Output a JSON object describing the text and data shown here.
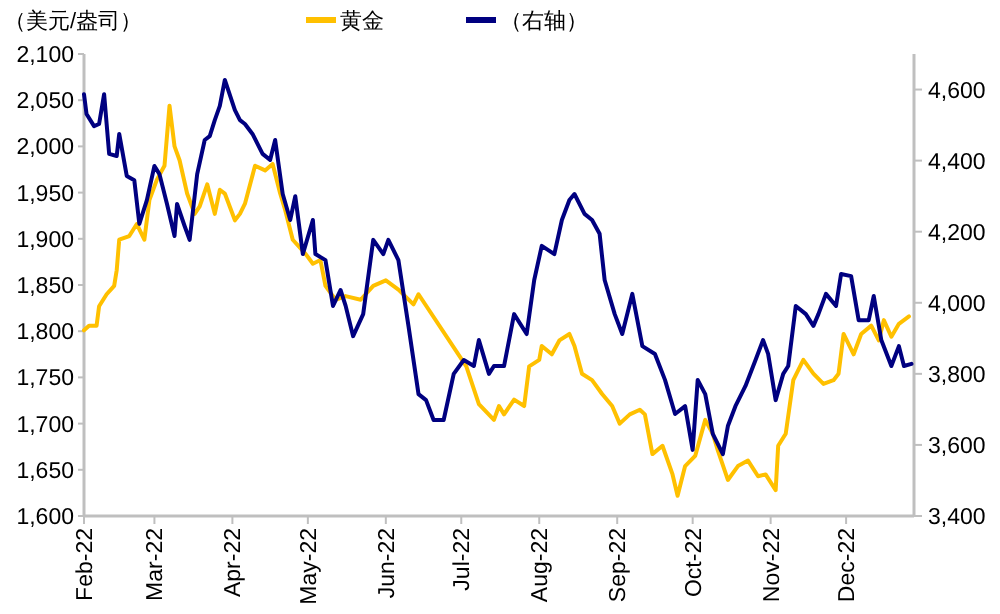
{
  "chart_data": {
    "type": "line",
    "ylabel": "（美元/盎司）",
    "legend": "top",
    "grid": false,
    "line_style": "solid",
    "xlim": [
      "2022-02-01",
      "2022-12-28"
    ],
    "xticks": [
      {
        "value": "2022-02-01",
        "label": "Feb-22"
      },
      {
        "value": "2022-03-01",
        "label": "Mar-22"
      },
      {
        "value": "2022-04-01",
        "label": "Apr-22"
      },
      {
        "value": "2022-05-01",
        "label": "May-22"
      },
      {
        "value": "2022-06-01",
        "label": "Jun-22"
      },
      {
        "value": "2022-07-01",
        "label": "Jul-22"
      },
      {
        "value": "2022-08-01",
        "label": "Aug-22"
      },
      {
        "value": "2022-09-01",
        "label": "Sep-22"
      },
      {
        "value": "2022-10-01",
        "label": "Oct-22"
      },
      {
        "value": "2022-11-01",
        "label": "Nov-22"
      },
      {
        "value": "2022-12-01",
        "label": "Dec-22"
      }
    ],
    "ylim": [
      1600,
      2100
    ],
    "yticks": [
      {
        "value": 1600,
        "label": "1,600"
      },
      {
        "value": 1650,
        "label": "1,650"
      },
      {
        "value": 1700,
        "label": "1,700"
      },
      {
        "value": 1750,
        "label": "1,750"
      },
      {
        "value": 1800,
        "label": "1,800"
      },
      {
        "value": 1850,
        "label": "1,850"
      },
      {
        "value": 1900,
        "label": "1,900"
      },
      {
        "value": 1950,
        "label": "1,950"
      },
      {
        "value": 2000,
        "label": "2,000"
      },
      {
        "value": 2050,
        "label": "2,050"
      },
      {
        "value": 2100,
        "label": "2,100"
      }
    ],
    "y2lim": [
      3400,
      4700
    ],
    "y2ticks": [
      {
        "value": 3400,
        "label": "3,400"
      },
      {
        "value": 3600,
        "label": "3,600"
      },
      {
        "value": 3800,
        "label": "3,800"
      },
      {
        "value": 4000,
        "label": "4,000"
      },
      {
        "value": 4200,
        "label": "4,200"
      },
      {
        "value": 4400,
        "label": "4,400"
      },
      {
        "value": 4600,
        "label": "4,600"
      }
    ],
    "series": [
      {
        "name": "黄金",
        "color": "#ffc000",
        "x": [
          "2022-02-01",
          "2022-02-03",
          "2022-02-06",
          "2022-02-07",
          "2022-02-10",
          "2022-02-13",
          "2022-02-14",
          "2022-02-15",
          "2022-02-19",
          "2022-02-22",
          "2022-02-25",
          "2022-02-27",
          "2022-03-02",
          "2022-03-05",
          "2022-03-07",
          "2022-03-09",
          "2022-03-11",
          "2022-03-14",
          "2022-03-17",
          "2022-03-19",
          "2022-03-22",
          "2022-03-25",
          "2022-03-27",
          "2022-03-29",
          "2022-04-02",
          "2022-04-04",
          "2022-04-06",
          "2022-04-10",
          "2022-04-14",
          "2022-04-17",
          "2022-04-20",
          "2022-04-22",
          "2022-04-25",
          "2022-04-30",
          "2022-05-03",
          "2022-05-06",
          "2022-05-08",
          "2022-05-12",
          "2022-05-16",
          "2022-05-22",
          "2022-05-27",
          "2022-06-01",
          "2022-06-06",
          "2022-06-12",
          "2022-06-14",
          "2022-07-03",
          "2022-07-08",
          "2022-07-14",
          "2022-07-16",
          "2022-07-18",
          "2022-07-22",
          "2022-07-26",
          "2022-07-28",
          "2022-08-01",
          "2022-08-02",
          "2022-08-06",
          "2022-08-09",
          "2022-08-13",
          "2022-08-15",
          "2022-08-18",
          "2022-08-22",
          "2022-08-26",
          "2022-08-30",
          "2022-09-02",
          "2022-09-06",
          "2022-09-10",
          "2022-09-12",
          "2022-09-15",
          "2022-09-19",
          "2022-09-23",
          "2022-09-25",
          "2022-09-28",
          "2022-10-02",
          "2022-10-06",
          "2022-10-09",
          "2022-10-11",
          "2022-10-15",
          "2022-10-19",
          "2022-10-23",
          "2022-10-27",
          "2022-10-30",
          "2022-11-03",
          "2022-11-04",
          "2022-11-07",
          "2022-11-10",
          "2022-11-14",
          "2022-11-18",
          "2022-11-22",
          "2022-11-26",
          "2022-11-28",
          "2022-11-30",
          "2022-12-04",
          "2022-12-07",
          "2022-12-11",
          "2022-12-14",
          "2022-12-16",
          "2022-12-19",
          "2022-12-22",
          "2022-12-26"
        ],
        "values": [
          1801,
          1806,
          1806,
          1827,
          1840,
          1849,
          1866,
          1899,
          1903,
          1916,
          1899,
          1942,
          1964,
          1979,
          2044,
          2000,
          1985,
          1949,
          1927,
          1935,
          1959,
          1927,
          1953,
          1949,
          1920,
          1927,
          1938,
          1979,
          1974,
          1981,
          1949,
          1931,
          1899,
          1884,
          1873,
          1877,
          1849,
          1834,
          1838,
          1834,
          1849,
          1855,
          1845,
          1829,
          1840,
          1762,
          1721,
          1704,
          1719,
          1710,
          1726,
          1719,
          1762,
          1769,
          1784,
          1775,
          1790,
          1797,
          1784,
          1754,
          1747,
          1732,
          1719,
          1700,
          1710,
          1715,
          1710,
          1667,
          1676,
          1645,
          1622,
          1654,
          1665,
          1704,
          1689,
          1671,
          1639,
          1654,
          1660,
          1643,
          1645,
          1628,
          1676,
          1689,
          1747,
          1769,
          1754,
          1743,
          1747,
          1754,
          1797,
          1775,
          1797,
          1806,
          1790,
          1812,
          1794,
          1808,
          1816
        ]
      },
      {
        "name": "（右轴）",
        "color": "#000080",
        "axis": "y2",
        "x": [
          "2022-02-01",
          "2022-02-02",
          "2022-02-05",
          "2022-02-07",
          "2022-02-09",
          "2022-02-11",
          "2022-02-14",
          "2022-02-15",
          "2022-02-18",
          "2022-02-21",
          "2022-02-23",
          "2022-02-26",
          "2022-03-01",
          "2022-03-03",
          "2022-03-06",
          "2022-03-09",
          "2022-03-10",
          "2022-03-13",
          "2022-03-15",
          "2022-03-18",
          "2022-03-21",
          "2022-03-23",
          "2022-03-25",
          "2022-03-27",
          "2022-03-29",
          "2022-04-02",
          "2022-04-04",
          "2022-04-06",
          "2022-04-09",
          "2022-04-13",
          "2022-04-16",
          "2022-04-18",
          "2022-04-21",
          "2022-04-24",
          "2022-04-26",
          "2022-04-29",
          "2022-05-03",
          "2022-05-04",
          "2022-05-08",
          "2022-05-11",
          "2022-05-14",
          "2022-05-16",
          "2022-05-19",
          "2022-05-23",
          "2022-05-27",
          "2022-05-31",
          "2022-06-02",
          "2022-06-06",
          "2022-06-10",
          "2022-06-14",
          "2022-06-17",
          "2022-06-20",
          "2022-06-24",
          "2022-06-28",
          "2022-07-02",
          "2022-07-06",
          "2022-07-08",
          "2022-07-12",
          "2022-07-14",
          "2022-07-18",
          "2022-07-22",
          "2022-07-27",
          "2022-07-30",
          "2022-08-02",
          "2022-08-07",
          "2022-08-10",
          "2022-08-13",
          "2022-08-15",
          "2022-08-19",
          "2022-08-22",
          "2022-08-25",
          "2022-08-27",
          "2022-08-31",
          "2022-09-03",
          "2022-09-07",
          "2022-09-11",
          "2022-09-16",
          "2022-09-20",
          "2022-09-24",
          "2022-09-28",
          "2022-10-01",
          "2022-10-03",
          "2022-10-06",
          "2022-10-09",
          "2022-10-13",
          "2022-10-15",
          "2022-10-18",
          "2022-10-22",
          "2022-10-26",
          "2022-10-29",
          "2022-10-31",
          "2022-11-03",
          "2022-11-06",
          "2022-11-08",
          "2022-11-11",
          "2022-11-15",
          "2022-11-18",
          "2022-11-20",
          "2022-11-23",
          "2022-11-27",
          "2022-11-29",
          "2022-12-03",
          "2022-12-06",
          "2022-12-10",
          "2022-12-12",
          "2022-12-15",
          "2022-12-19",
          "2022-12-22",
          "2022-12-24",
          "2022-12-27"
        ],
        "values": [
          4587,
          4531,
          4497,
          4503,
          4587,
          4419,
          4413,
          4475,
          4357,
          4345,
          4222,
          4289,
          4385,
          4362,
          4278,
          4188,
          4278,
          4216,
          4177,
          4362,
          4458,
          4469,
          4514,
          4554,
          4627,
          4542,
          4514,
          4503,
          4475,
          4419,
          4402,
          4458,
          4306,
          4233,
          4300,
          4137,
          4233,
          4137,
          4120,
          3991,
          4036,
          3992,
          3906,
          3968,
          4177,
          4137,
          4177,
          4120,
          3935,
          3743,
          3726,
          3670,
          3670,
          3800,
          3839,
          3822,
          3895,
          3800,
          3822,
          3822,
          3968,
          3912,
          4064,
          4160,
          4137,
          4233,
          4289,
          4306,
          4250,
          4233,
          4194,
          4064,
          3968,
          3912,
          4025,
          3878,
          3856,
          3783,
          3687,
          3709,
          3586,
          3783,
          3743,
          3631,
          3574,
          3653,
          3709,
          3766,
          3839,
          3895,
          3856,
          3726,
          3800,
          3822,
          3991,
          3968,
          3935,
          3968,
          4025,
          3991,
          4081,
          4075,
          3951,
          3951,
          4019,
          3895,
          3822,
          3878,
          3822,
          3828
        ]
      }
    ]
  }
}
